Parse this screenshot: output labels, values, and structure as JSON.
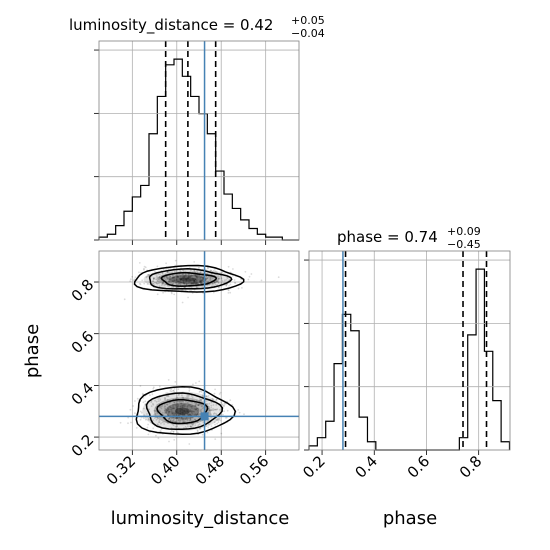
{
  "figure": {
    "type": "corner plot"
  },
  "colors": {
    "truth": "#4682b4",
    "hist": "#000000",
    "grid": "#b0b0b0",
    "frame": "#808080"
  },
  "titles": {
    "luminosity_distance": {
      "prefix": "luminosity_distance = 0.42",
      "plus": "+0.05",
      "minus": "−0.04"
    },
    "phase": {
      "prefix": "phase = 0.74",
      "plus": "+0.09",
      "minus": "−0.45"
    }
  },
  "labels": {
    "x_left": "luminosity_distance",
    "x_right": "phase",
    "y_left": "phase"
  },
  "chart_data": [
    {
      "type": "bar",
      "name": "luminosity_distance marginal histogram",
      "x_range": [
        0.26,
        0.62
      ],
      "bin_edges": [
        0.26,
        0.275,
        0.29,
        0.305,
        0.32,
        0.335,
        0.35,
        0.365,
        0.38,
        0.395,
        0.41,
        0.425,
        0.44,
        0.455,
        0.47,
        0.485,
        0.5,
        0.515,
        0.53,
        0.545,
        0.56,
        0.575,
        0.59,
        0.605,
        0.62
      ],
      "counts": [
        1,
        2,
        5,
        10,
        15,
        19,
        37,
        50,
        61,
        63,
        57,
        50,
        44,
        37,
        24,
        16,
        11,
        7,
        4,
        2,
        1,
        1,
        0,
        0
      ],
      "quantiles": [
        0.38,
        0.42,
        0.47
      ],
      "truth": 0.45,
      "xticks": [
        "0.32",
        "0.40",
        "0.48",
        "0.56"
      ],
      "xlabel": "luminosity_distance"
    },
    {
      "type": "heatmap",
      "name": "2D posterior luminosity_distance vs phase",
      "x_range": [
        0.26,
        0.62
      ],
      "y_range": [
        0.15,
        0.92
      ],
      "modes": [
        {
          "x": 0.42,
          "y": 0.81
        },
        {
          "x": 0.41,
          "y": 0.3
        }
      ],
      "truth": {
        "x": 0.45,
        "y": 0.28
      },
      "xticks": [
        "0.32",
        "0.40",
        "0.48",
        "0.56"
      ],
      "yticks": [
        "0.2",
        "0.4",
        "0.6",
        "0.8"
      ],
      "xlabel": "luminosity_distance",
      "ylabel": "phase"
    },
    {
      "type": "bar",
      "name": "phase marginal histogram",
      "x_range": [
        0.15,
        0.92
      ],
      "bin_edges": [
        0.15,
        0.182,
        0.214,
        0.246,
        0.278,
        0.31,
        0.342,
        0.374,
        0.406,
        0.438,
        0.47,
        0.502,
        0.534,
        0.566,
        0.598,
        0.63,
        0.662,
        0.694,
        0.726,
        0.758,
        0.79,
        0.822,
        0.854,
        0.886,
        0.918
      ],
      "counts": [
        1,
        3,
        7,
        21,
        33,
        29,
        8,
        2,
        0,
        0,
        0,
        0,
        0,
        0,
        0,
        0,
        0,
        0,
        3,
        28,
        44,
        24,
        12,
        2
      ],
      "quantiles": [
        0.29,
        0.74,
        0.83
      ],
      "truth": 0.28,
      "xticks": [
        "0.2",
        "0.4",
        "0.6",
        "0.8"
      ],
      "xlabel": "phase"
    }
  ]
}
